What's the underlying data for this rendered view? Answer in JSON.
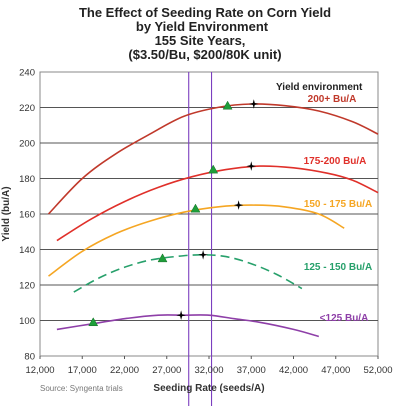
{
  "chart_data": {
    "type": "line",
    "title_lines": [
      "The Effect of Seeding Rate on Corn Yield",
      "by Yield Environment",
      "155 Site Years,",
      "($3.50/Bu, $200/80K unit)"
    ],
    "xlabel": "Seeding Rate (seeds/A)",
    "ylabel": "Yield (bu/A)",
    "xlim": [
      12000,
      52000
    ],
    "ylim": [
      80,
      240
    ],
    "xticks": [
      "12,000",
      "17,000",
      "22,000",
      "27,000",
      "32,000",
      "37,000",
      "42,000",
      "47,000",
      "52,000"
    ],
    "yticks": [
      "80",
      "100",
      "120",
      "140",
      "160",
      "180",
      "200",
      "220",
      "240"
    ],
    "grid": "horizontal",
    "legend_title": "Yield environment",
    "source": "Source: Syngenta trials",
    "vertical_lines_x": [
      29600,
      32300
    ],
    "series": [
      {
        "name": "200+ Bu/A",
        "color": "#c0392b",
        "x": [
          13000,
          17000,
          21000,
          25000,
          29000,
          33000,
          37000,
          41000,
          45000,
          49000,
          52000
        ],
        "y": [
          160,
          180,
          194,
          205,
          215,
          220,
          222,
          221,
          218,
          212,
          205
        ],
        "optimum_x": 34200,
        "optimum_y": 221,
        "max_x": 37300,
        "max_y": 222
      },
      {
        "name": "175-200 Bu/A",
        "color": "#e0302a",
        "x": [
          14000,
          18000,
          22000,
          26000,
          30000,
          34000,
          38000,
          42000,
          46000,
          49000,
          52000
        ],
        "y": [
          145,
          157,
          167,
          175,
          181,
          185,
          187,
          186,
          183,
          179,
          172
        ],
        "optimum_x": 32500,
        "optimum_y": 185,
        "max_x": 37000,
        "max_y": 187
      },
      {
        "name": "150 - 175 Bu/A",
        "color": "#f5a623",
        "x": [
          13000,
          17000,
          21000,
          25000,
          29000,
          33000,
          37000,
          41000,
          45000,
          48000
        ],
        "y": [
          125,
          139,
          149,
          156,
          161,
          164,
          165,
          164,
          160,
          152
        ],
        "optimum_x": 30400,
        "optimum_y": 163,
        "max_x": 35500,
        "max_y": 165
      },
      {
        "name": "125 - 150 Bu/A",
        "color": "#27a06b",
        "dashed": true,
        "x": [
          16000,
          19000,
          22000,
          25000,
          28000,
          31000,
          34000,
          37000,
          40000,
          43000
        ],
        "y": [
          116,
          124,
          130,
          134,
          136,
          137,
          136,
          132,
          126,
          118
        ],
        "optimum_x": 26500,
        "optimum_y": 135,
        "max_x": 31300,
        "max_y": 137
      },
      {
        "name": "<125 Bu/A",
        "color": "#8e3fa8",
        "x": [
          14000,
          18000,
          22000,
          26000,
          29000,
          32000,
          35000,
          38000,
          42000,
          45000
        ],
        "y": [
          95,
          98,
          101,
          103,
          103,
          103,
          101,
          99,
          95,
          91
        ],
        "optimum_x": 18300,
        "optimum_y": 99,
        "max_x": 28700,
        "max_y": 103
      }
    ]
  }
}
